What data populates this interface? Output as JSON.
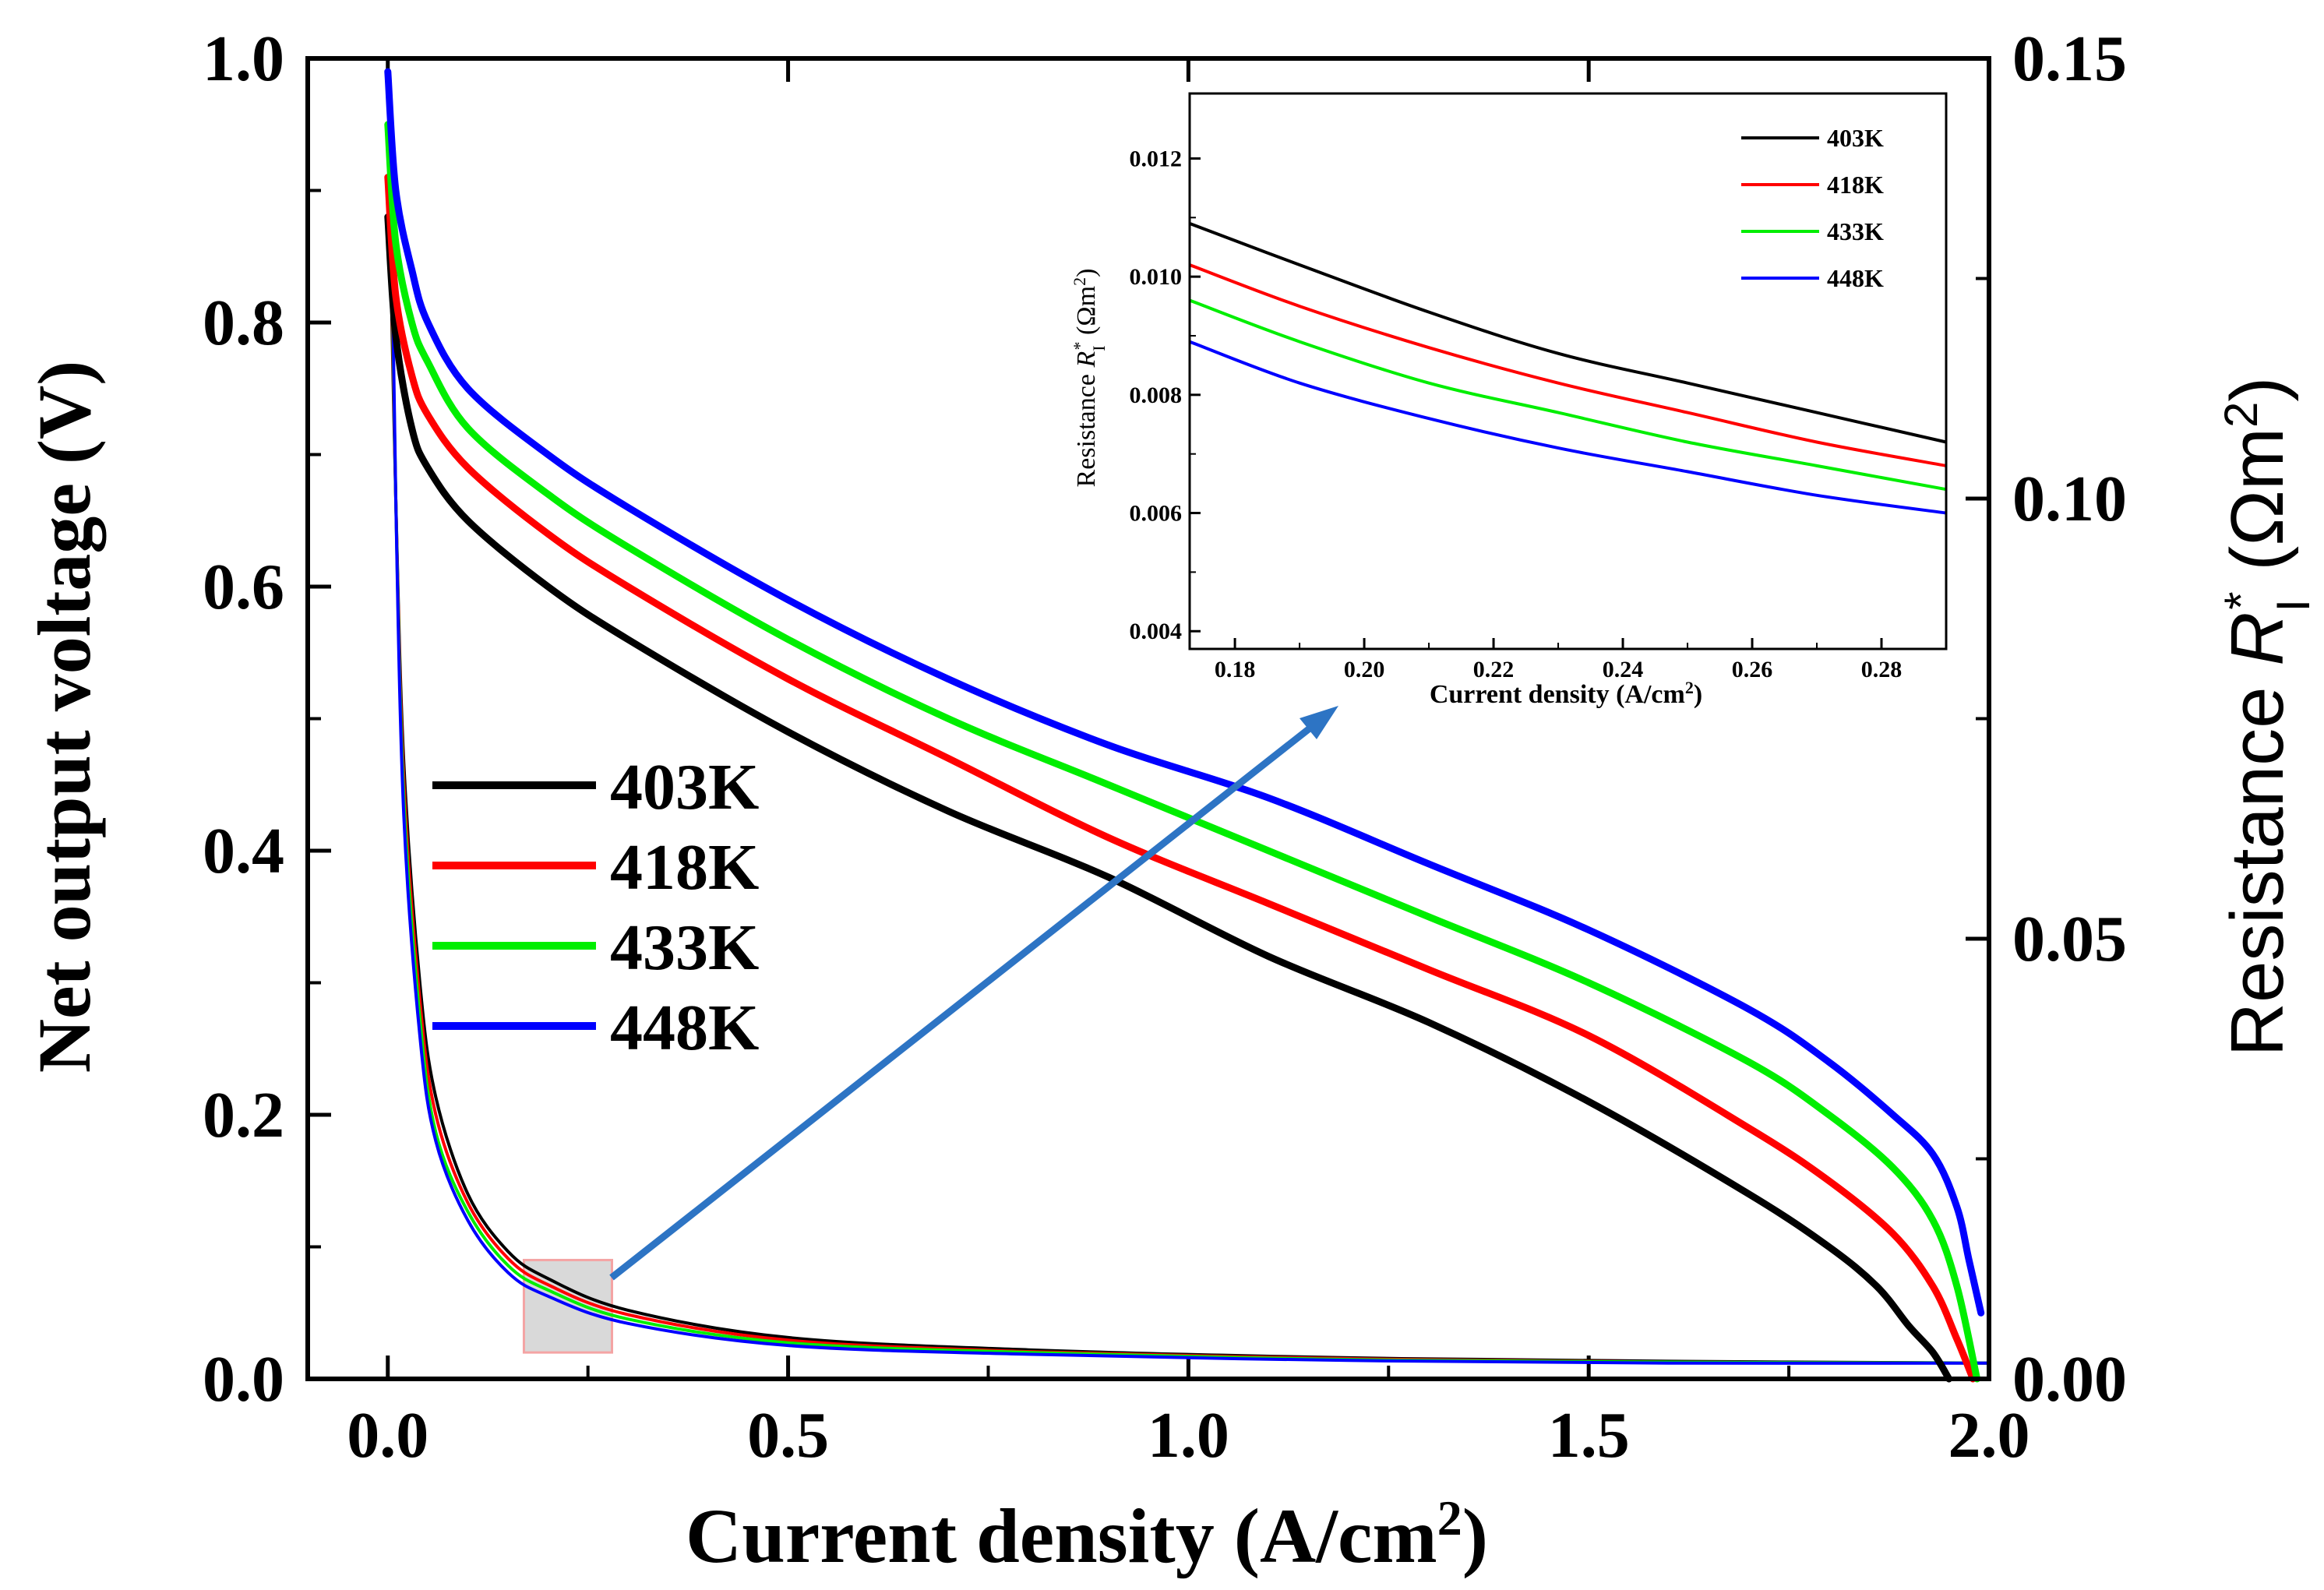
{
  "chart_data": [
    {
      "type": "line",
      "title": "",
      "xlabel": "Current density (A/cm",
      "xlabel_sup": "2",
      "xlabel_end": ")",
      "ylabel": "Net output voltage (V)",
      "y2label": "Resistance ",
      "y2label_italic": "R",
      "y2label_sub": "I",
      "y2label_sup": "*",
      "y2label_unit": " (Ωm",
      "y2label_unit_sup": "2",
      "y2label_end": ")",
      "xlim": [
        -0.1,
        2.0
      ],
      "ylim": [
        0.0,
        1.0
      ],
      "y2lim": [
        0.0,
        0.15
      ],
      "xticks": [
        "0.0",
        "0.5",
        "1.0",
        "1.5",
        "2.0"
      ],
      "xtick_values": [
        0.0,
        0.5,
        1.0,
        1.5,
        2.0
      ],
      "yticks": [
        "0.0",
        "0.2",
        "0.4",
        "0.6",
        "0.8",
        "1.0"
      ],
      "ytick_values": [
        0.0,
        0.2,
        0.4,
        0.6,
        0.8,
        1.0
      ],
      "y2ticks": [
        "0.00",
        "0.05",
        "0.10",
        "0.15"
      ],
      "y2tick_values": [
        0.0,
        0.05,
        0.1,
        0.15
      ],
      "legend": [
        "403K",
        "418K",
        "433K",
        "448K"
      ],
      "legend_position": "left-middle",
      "colors": [
        "#000000",
        "#ff0000",
        "#00ee00",
        "#0000ff"
      ],
      "voltage_series": [
        {
          "name": "403K",
          "x": [
            0.0,
            0.01,
            0.03,
            0.05,
            0.1,
            0.2,
            0.3,
            0.5,
            0.7,
            0.9,
            1.1,
            1.3,
            1.5,
            1.7,
            1.8,
            1.86,
            1.9,
            1.93,
            1.95
          ],
          "values": [
            0.88,
            0.79,
            0.72,
            0.69,
            0.65,
            0.6,
            0.56,
            0.49,
            0.43,
            0.38,
            0.32,
            0.27,
            0.21,
            0.14,
            0.1,
            0.07,
            0.04,
            0.02,
            0.0
          ]
        },
        {
          "name": "418K",
          "x": [
            0.0,
            0.01,
            0.03,
            0.05,
            0.1,
            0.2,
            0.3,
            0.5,
            0.7,
            0.9,
            1.1,
            1.3,
            1.5,
            1.7,
            1.8,
            1.88,
            1.93,
            1.96,
            1.98
          ],
          "values": [
            0.91,
            0.82,
            0.76,
            0.73,
            0.69,
            0.64,
            0.6,
            0.53,
            0.47,
            0.41,
            0.36,
            0.31,
            0.26,
            0.19,
            0.15,
            0.11,
            0.07,
            0.03,
            0.0
          ]
        },
        {
          "name": "433K",
          "x": [
            0.0,
            0.01,
            0.03,
            0.05,
            0.1,
            0.2,
            0.3,
            0.5,
            0.7,
            0.9,
            1.1,
            1.3,
            1.5,
            1.7,
            1.8,
            1.88,
            1.93,
            1.96,
            1.985
          ],
          "values": [
            0.95,
            0.86,
            0.8,
            0.77,
            0.72,
            0.67,
            0.63,
            0.56,
            0.5,
            0.45,
            0.4,
            0.35,
            0.3,
            0.24,
            0.2,
            0.16,
            0.12,
            0.07,
            0.0
          ]
        },
        {
          "name": "448K",
          "x": [
            0.0,
            0.01,
            0.03,
            0.05,
            0.1,
            0.2,
            0.3,
            0.5,
            0.7,
            0.9,
            1.1,
            1.3,
            1.5,
            1.7,
            1.8,
            1.88,
            1.93,
            1.96,
            1.975,
            1.99
          ],
          "values": [
            0.99,
            0.9,
            0.84,
            0.8,
            0.75,
            0.7,
            0.66,
            0.59,
            0.53,
            0.48,
            0.44,
            0.39,
            0.34,
            0.28,
            0.24,
            0.2,
            0.17,
            0.13,
            0.09,
            0.05
          ]
        }
      ],
      "resistance_series": [
        {
          "name": "403K",
          "x": [
            0.003,
            0.01,
            0.02,
            0.04,
            0.06,
            0.1,
            0.15,
            0.2,
            0.3,
            0.5,
            0.8,
            1.2,
            1.6,
            2.0
          ],
          "values": [
            0.13,
            0.1,
            0.07,
            0.045,
            0.032,
            0.021,
            0.0145,
            0.0114,
            0.0078,
            0.0047,
            0.0033,
            0.0024,
            0.002,
            0.0018
          ]
        },
        {
          "name": "418K",
          "x": [
            0.003,
            0.01,
            0.02,
            0.04,
            0.06,
            0.1,
            0.15,
            0.2,
            0.3,
            0.5,
            0.8,
            1.2,
            1.6,
            2.0
          ],
          "values": [
            0.135,
            0.1,
            0.068,
            0.043,
            0.03,
            0.02,
            0.0137,
            0.0107,
            0.0073,
            0.0044,
            0.0031,
            0.0023,
            0.0019,
            0.0018
          ]
        },
        {
          "name": "433K",
          "x": [
            0.003,
            0.01,
            0.02,
            0.04,
            0.06,
            0.1,
            0.15,
            0.2,
            0.3,
            0.5,
            0.8,
            1.2,
            1.6,
            2.0
          ],
          "values": [
            0.14,
            0.1,
            0.066,
            0.041,
            0.028,
            0.019,
            0.0129,
            0.0101,
            0.0068,
            0.0041,
            0.003,
            0.0022,
            0.0019,
            0.0018
          ]
        },
        {
          "name": "448K",
          "x": [
            0.003,
            0.01,
            0.02,
            0.04,
            0.06,
            0.1,
            0.15,
            0.2,
            0.3,
            0.5,
            0.8,
            1.2,
            1.6,
            2.0
          ],
          "values": [
            0.145,
            0.1,
            0.064,
            0.039,
            0.027,
            0.018,
            0.0121,
            0.0094,
            0.0063,
            0.0038,
            0.0028,
            0.0021,
            0.0018,
            0.0018
          ]
        }
      ],
      "highlight_box": {
        "x": [
          0.17,
          0.28
        ],
        "y2": [
          0.003,
          0.0135
        ]
      }
    },
    {
      "type": "line",
      "title": "",
      "xlabel": "Current density (A/cm",
      "xlabel_sup": "2",
      "xlabel_end": ")",
      "ylabel": "Resistance ",
      "ylabel_italic": "R",
      "ylabel_sub": "I",
      "ylabel_sup": "*",
      "ylabel_unit": " (Ωm",
      "ylabel_unit_sup": "2",
      "ylabel_end": ")",
      "xlim": [
        0.173,
        0.29
      ],
      "ylim": [
        0.0037,
        0.0131
      ],
      "xticks": [
        "0.18",
        "0.20",
        "0.22",
        "0.24",
        "0.26",
        "0.28"
      ],
      "xtick_values": [
        0.18,
        0.2,
        0.22,
        0.24,
        0.26,
        0.28
      ],
      "yticks": [
        "0.004",
        "0.006",
        "0.008",
        "0.010",
        "0.012"
      ],
      "ytick_values": [
        0.004,
        0.006,
        0.008,
        0.01,
        0.012
      ],
      "legend": [
        "403K",
        "418K",
        "433K",
        "448K"
      ],
      "legend_position": "top-right",
      "colors": [
        "#000000",
        "#ff0000",
        "#00ee00",
        "#0000ff"
      ],
      "series": [
        {
          "name": "403K",
          "x": [
            0.173,
            0.19,
            0.21,
            0.23,
            0.25,
            0.27,
            0.29
          ],
          "values": [
            0.0109,
            0.0102,
            0.0094,
            0.0087,
            0.0082,
            0.0077,
            0.0072
          ]
        },
        {
          "name": "418K",
          "x": [
            0.173,
            0.19,
            0.21,
            0.23,
            0.25,
            0.27,
            0.29
          ],
          "values": [
            0.0102,
            0.0095,
            0.0088,
            0.0082,
            0.0077,
            0.0072,
            0.0068
          ]
        },
        {
          "name": "433K",
          "x": [
            0.173,
            0.19,
            0.21,
            0.23,
            0.25,
            0.27,
            0.29
          ],
          "values": [
            0.0096,
            0.0089,
            0.0082,
            0.0077,
            0.0072,
            0.0068,
            0.0064
          ]
        },
        {
          "name": "448K",
          "x": [
            0.173,
            0.19,
            0.21,
            0.23,
            0.25,
            0.27,
            0.29
          ],
          "values": [
            0.0089,
            0.0082,
            0.0076,
            0.0071,
            0.0067,
            0.0063,
            0.006
          ]
        }
      ]
    }
  ]
}
